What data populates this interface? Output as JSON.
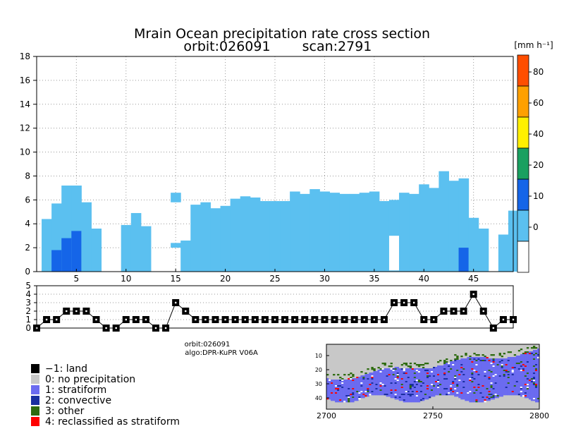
{
  "title": "Mrain Ocean precipitation rate cross section",
  "subtitle_orbit": "orbit:026091",
  "subtitle_scan": "scan:2791",
  "colorbar": {
    "unit": "[mm h⁻¹]",
    "labels": [
      "0",
      "10",
      "20",
      "40",
      "60",
      "80"
    ],
    "colors": [
      "#ffffff",
      "#5bc0f0",
      "#1565e8",
      "#1aa060",
      "#fff000",
      "#ffa000",
      "#ff4e00"
    ]
  },
  "info": {
    "orbit": "orbit:026091",
    "algo": "algo:DPR-KuPR V06A"
  },
  "legend": [
    {
      "label": "−1: land",
      "color": "#000000"
    },
    {
      "label": "0: no precipitation",
      "color": "#c8c8c8"
    },
    {
      "label": "1: stratiform",
      "color": "#6b6bf0"
    },
    {
      "label": "2: convective",
      "color": "#1a2fa0"
    },
    {
      "label": "3: other",
      "color": "#2e6b10"
    },
    {
      "label": "4: reclassified as stratiform",
      "color": "#ff0000"
    }
  ],
  "colors": {
    "light_rain": "#5bc0f0",
    "heavy_rain": "#1565e8",
    "map_land": "#c8c8c8",
    "map_strat": "#6b6bf0",
    "map_conv": "#1a2fa0",
    "map_other": "#2e6b10",
    "map_recl": "#ff0000"
  },
  "chart_data": [
    {
      "type": "bar",
      "title": "Mrain Ocean precipitation rate cross section",
      "xlim": [
        1,
        49
      ],
      "ylim": [
        0,
        18
      ],
      "xticks": [
        5,
        10,
        15,
        20,
        25,
        30,
        35,
        40,
        45
      ],
      "yticks": [
        0,
        2,
        4,
        6,
        8,
        10,
        12,
        14,
        16,
        18
      ],
      "grid": true,
      "columns": [
        {
          "x": 2,
          "bottom": 0,
          "top": 4.4
        },
        {
          "x": 3,
          "bottom": 0,
          "top": 5.7,
          "heavy_top": 1.8
        },
        {
          "x": 4,
          "bottom": 0,
          "top": 7.2,
          "heavy_top": 2.8
        },
        {
          "x": 5,
          "bottom": 0,
          "top": 7.2,
          "heavy_top": 3.4
        },
        {
          "x": 6,
          "bottom": 0,
          "top": 5.8
        },
        {
          "x": 7,
          "bottom": 0,
          "top": 3.6
        },
        {
          "x": 10,
          "bottom": 0,
          "top": 3.9
        },
        {
          "x": 11,
          "bottom": 0,
          "top": 4.9
        },
        {
          "x": 12,
          "bottom": 0,
          "top": 3.8
        },
        {
          "x": 15,
          "bottom": 2.0,
          "top": 2.4
        },
        {
          "x": 15,
          "bottom": 5.8,
          "top": 6.6
        },
        {
          "x": 16,
          "bottom": 0,
          "top": 2.6
        },
        {
          "x": 17,
          "bottom": 0,
          "top": 5.6
        },
        {
          "x": 18,
          "bottom": 0,
          "top": 5.8
        },
        {
          "x": 19,
          "bottom": 0,
          "top": 5.3
        },
        {
          "x": 20,
          "bottom": 0,
          "top": 5.5
        },
        {
          "x": 21,
          "bottom": 0,
          "top": 6.1
        },
        {
          "x": 22,
          "bottom": 0,
          "top": 6.3
        },
        {
          "x": 23,
          "bottom": 0,
          "top": 6.2
        },
        {
          "x": 24,
          "bottom": 0,
          "top": 5.9
        },
        {
          "x": 25,
          "bottom": 0,
          "top": 5.9
        },
        {
          "x": 26,
          "bottom": 0,
          "top": 5.9
        },
        {
          "x": 27,
          "bottom": 0,
          "top": 6.7
        },
        {
          "x": 28,
          "bottom": 0,
          "top": 6.5
        },
        {
          "x": 29,
          "bottom": 0,
          "top": 6.9
        },
        {
          "x": 30,
          "bottom": 0,
          "top": 6.7
        },
        {
          "x": 31,
          "bottom": 0,
          "top": 6.6
        },
        {
          "x": 32,
          "bottom": 0,
          "top": 6.5
        },
        {
          "x": 33,
          "bottom": 0,
          "top": 6.5
        },
        {
          "x": 34,
          "bottom": 0,
          "top": 6.6
        },
        {
          "x": 35,
          "bottom": 0,
          "top": 6.7
        },
        {
          "x": 36,
          "bottom": 0,
          "top": 5.9
        },
        {
          "x": 37,
          "bottom": 0,
          "top": 6.0
        },
        {
          "x": 37,
          "bottom": 0.1,
          "top": 3.0,
          "gap": true
        },
        {
          "x": 38,
          "bottom": 0,
          "top": 6.6
        },
        {
          "x": 39,
          "bottom": 0,
          "top": 6.5
        },
        {
          "x": 40,
          "bottom": 0,
          "top": 7.3
        },
        {
          "x": 41,
          "bottom": 0,
          "top": 7.0
        },
        {
          "x": 42,
          "bottom": 0,
          "top": 8.4
        },
        {
          "x": 43,
          "bottom": 0,
          "top": 7.6
        },
        {
          "x": 44,
          "bottom": 0,
          "top": 7.8,
          "heavy_top": 2.0
        },
        {
          "x": 45,
          "bottom": 0,
          "top": 4.5
        },
        {
          "x": 46,
          "bottom": 0,
          "top": 3.6
        },
        {
          "x": 48,
          "bottom": 0,
          "top": 3.1
        },
        {
          "x": 49,
          "bottom": 0,
          "top": 5.1
        }
      ]
    },
    {
      "type": "line",
      "xlim": [
        1,
        49
      ],
      "ylim": [
        0,
        5
      ],
      "yticks": [
        0,
        1,
        2,
        3,
        4,
        5
      ],
      "x": [
        1,
        2,
        3,
        4,
        5,
        6,
        7,
        8,
        9,
        10,
        11,
        12,
        13,
        14,
        15,
        16,
        17,
        18,
        19,
        20,
        21,
        22,
        23,
        24,
        25,
        26,
        27,
        28,
        29,
        30,
        31,
        32,
        33,
        34,
        35,
        36,
        37,
        38,
        39,
        40,
        41,
        42,
        43,
        44,
        45,
        46,
        47,
        48,
        49
      ],
      "y": [
        0,
        1,
        1,
        2,
        2,
        2,
        1,
        0,
        0,
        1,
        1,
        1,
        0,
        0,
        3,
        2,
        1,
        1,
        1,
        1,
        1,
        1,
        1,
        1,
        1,
        1,
        1,
        1,
        1,
        1,
        1,
        1,
        1,
        1,
        1,
        1,
        3,
        3,
        3,
        1,
        1,
        2,
        2,
        2,
        4,
        2,
        0,
        1,
        1
      ]
    },
    {
      "type": "heatmap",
      "xlabel_ticks": [
        "2700",
        "2750",
        "2800"
      ],
      "ylabel_ticks": [
        "10",
        "20",
        "30",
        "40"
      ],
      "classes": [
        "land",
        "no precipitation",
        "stratiform",
        "convective",
        "other",
        "reclassified as stratiform"
      ]
    }
  ]
}
